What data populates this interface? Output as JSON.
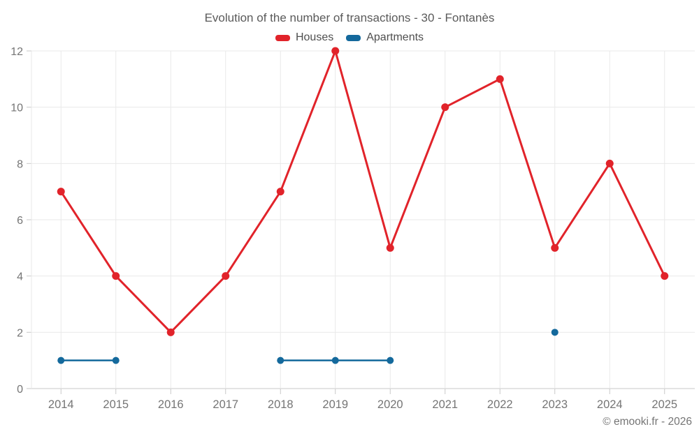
{
  "header": {
    "title": "Evolution of the number of transactions - 30 - Fontanès"
  },
  "footer": {
    "copyright": "© emooki.fr - 2026"
  },
  "colors": {
    "houses": "#e1232a",
    "apartments": "#14699c",
    "grid": "#e9e9e9",
    "axis": "#c9c9c9",
    "tick_text": "#757575",
    "title_text": "#5a5a5a",
    "legend_text": "#4f4f4f",
    "background": "#ffffff"
  },
  "chart_data": {
    "type": "line",
    "title": "Evolution of the number of transactions - 30 - Fontanès",
    "xlabel": "",
    "ylabel": "",
    "categories": [
      "2014",
      "2015",
      "2016",
      "2017",
      "2018",
      "2019",
      "2020",
      "2021",
      "2022",
      "2023",
      "2024",
      "2025"
    ],
    "series": [
      {
        "name": "Houses",
        "color": "#e1232a",
        "marker_radius": 5.5,
        "line_width": 3,
        "values": [
          7,
          4,
          2,
          4,
          7,
          12,
          5,
          10,
          11,
          5,
          8,
          4
        ]
      },
      {
        "name": "Apartments",
        "color": "#14699c",
        "marker_radius": 5,
        "line_width": 2.5,
        "values": [
          1,
          1,
          null,
          null,
          1,
          1,
          1,
          null,
          null,
          2,
          null,
          null
        ]
      }
    ],
    "ylim": [
      0,
      12
    ],
    "y_ticks": [
      0,
      2,
      4,
      6,
      8,
      10,
      12
    ],
    "grid": true,
    "legend_position": "top"
  }
}
